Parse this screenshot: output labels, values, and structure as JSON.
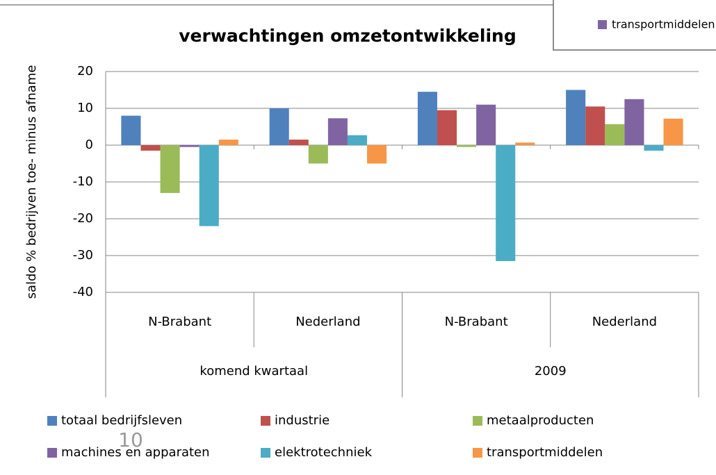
{
  "chart_data": {
    "type": "bar",
    "title": "verwachtingen omzetontwikkeling",
    "y_label": "saldo % bedrijven toe- minus afname",
    "categories": [
      "N-Brabant",
      "Nederland",
      "N-Brabant",
      "Nederland"
    ],
    "category_groups": [
      "komend kwartaal",
      "2009"
    ],
    "series": [
      {
        "name": "totaal bedrijfsleven",
        "color": "#4f81bd",
        "values": [
          8,
          10,
          14.5,
          15
        ]
      },
      {
        "name": "industrie",
        "color": "#c0504d",
        "values": [
          -1.5,
          1.5,
          9.5,
          10.5
        ]
      },
      {
        "name": "metaalproducten",
        "color": "#9bbb59",
        "values": [
          -13,
          -5,
          -0.5,
          5.7
        ]
      },
      {
        "name": "machines en apparaten",
        "color": "#8064a2",
        "values": [
          -0.5,
          7.3,
          11,
          12.5
        ]
      },
      {
        "name": "elektrotechniek",
        "color": "#4bacc6",
        "values": [
          -22,
          2.7,
          -31.5,
          -1.5
        ]
      },
      {
        "name": "transportmiddelen",
        "color": "#f79646",
        "values": [
          1.5,
          -5,
          0.7,
          7.2
        ]
      }
    ],
    "ylim": [
      -40,
      20
    ],
    "yticks": [
      -40,
      -30,
      -20,
      -10,
      0,
      10,
      20
    ],
    "grid": true,
    "legend": "bottom"
  },
  "slide_number": "10"
}
